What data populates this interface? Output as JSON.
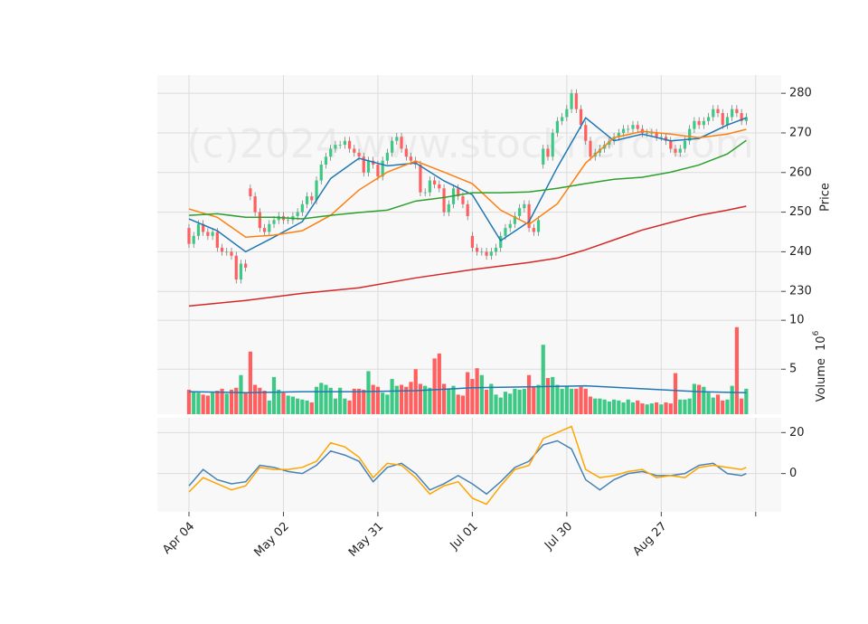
{
  "chart_data": [
    {
      "type": "candlestick",
      "ylabel": "Price",
      "watermark": "(c)2024 www.stocknerd.com",
      "up_color": "#3dc985",
      "down_color": "#ff5f5f",
      "open": [
        246,
        242,
        244,
        247,
        245,
        244,
        245,
        241,
        240,
        240,
        239,
        233,
        237,
        256,
        254,
        250,
        246,
        245,
        247,
        248,
        249,
        248,
        248,
        249,
        250,
        252,
        254,
        253,
        258,
        262,
        264,
        266,
        267,
        267,
        268,
        266,
        265,
        264,
        260,
        263,
        262,
        259,
        263,
        265,
        268,
        269,
        266,
        264,
        263,
        262,
        255,
        255,
        258,
        257,
        256,
        250,
        252,
        256,
        254,
        252,
        244,
        241,
        240,
        240,
        239,
        240,
        241,
        244,
        246,
        247,
        249,
        251,
        252,
        246,
        245,
        262,
        266,
        264,
        270,
        273,
        274,
        276,
        280,
        276,
        272,
        268,
        264,
        265,
        266,
        267,
        268,
        269,
        270,
        271,
        271,
        272,
        271,
        270,
        270,
        270,
        269,
        269,
        268,
        266,
        265,
        266,
        268,
        271,
        273,
        272,
        273,
        274,
        276,
        275,
        272,
        274,
        276,
        275,
        273
      ],
      "high": [
        247,
        245,
        248,
        248,
        246,
        246,
        246,
        242,
        241,
        241,
        240,
        238,
        238,
        257,
        255,
        251,
        247,
        248,
        249,
        250,
        250,
        249,
        250,
        251,
        253,
        255,
        255,
        259,
        263,
        265,
        267,
        268,
        268,
        269,
        269,
        267,
        266,
        265,
        264,
        264,
        263,
        264,
        266,
        269,
        270,
        270,
        267,
        265,
        264,
        263,
        256,
        259,
        259,
        258,
        257,
        253,
        257,
        257,
        255,
        253,
        245,
        242,
        241,
        241,
        241,
        242,
        245,
        247,
        248,
        250,
        252,
        253,
        253,
        247,
        249,
        267,
        267,
        271,
        274,
        275,
        277,
        281,
        281,
        277,
        273,
        269,
        266,
        267,
        268,
        269,
        270,
        271,
        272,
        272,
        273,
        273,
        272,
        271,
        271,
        271,
        270,
        270,
        269,
        267,
        267,
        269,
        272,
        274,
        274,
        274,
        275,
        277,
        277,
        276,
        275,
        277,
        277,
        276,
        275
      ],
      "low": [
        241,
        241,
        243,
        244,
        243,
        243,
        240,
        239,
        239,
        238,
        232,
        232,
        235,
        253,
        249,
        245,
        244,
        244,
        246,
        247,
        247,
        247,
        247,
        248,
        249,
        251,
        252,
        252,
        257,
        261,
        263,
        265,
        266,
        266,
        265,
        264,
        263,
        259,
        259,
        261,
        258,
        258,
        262,
        264,
        267,
        265,
        263,
        262,
        261,
        254,
        254,
        254,
        256,
        255,
        249,
        249,
        251,
        253,
        251,
        248,
        240,
        239,
        239,
        238,
        238,
        239,
        240,
        243,
        245,
        246,
        248,
        250,
        245,
        244,
        244,
        261,
        263,
        263,
        269,
        272,
        273,
        275,
        275,
        271,
        267,
        263,
        263,
        264,
        265,
        266,
        267,
        268,
        269,
        270,
        270,
        270,
        269,
        269,
        269,
        268,
        268,
        267,
        265,
        264,
        264,
        265,
        267,
        270,
        271,
        271,
        272,
        273,
        274,
        271,
        271,
        273,
        274,
        272,
        272
      ],
      "close": [
        242,
        244,
        247,
        245,
        244,
        245,
        241,
        240,
        240,
        239,
        233,
        237,
        236,
        254,
        250,
        246,
        245,
        247,
        248,
        249,
        248,
        248,
        249,
        250,
        252,
        254,
        253,
        258,
        262,
        264,
        266,
        267,
        267,
        268,
        266,
        265,
        264,
        260,
        263,
        262,
        259,
        263,
        265,
        268,
        269,
        266,
        264,
        263,
        262,
        255,
        255,
        258,
        257,
        256,
        250,
        252,
        256,
        254,
        252,
        249,
        241,
        240,
        240,
        239,
        240,
        241,
        244,
        246,
        247,
        249,
        251,
        252,
        246,
        245,
        248,
        266,
        264,
        270,
        273,
        274,
        276,
        280,
        276,
        272,
        268,
        264,
        265,
        266,
        267,
        268,
        269,
        270,
        271,
        271,
        272,
        271,
        270,
        270,
        270,
        269,
        269,
        268,
        266,
        265,
        266,
        268,
        271,
        273,
        272,
        273,
        274,
        276,
        275,
        272,
        274,
        276,
        275,
        273,
        274
      ],
      "series": [
        {
          "color": "#1f77b4",
          "x": [
            0,
            6,
            12,
            18,
            24,
            30,
            36,
            42,
            48,
            54,
            60,
            66,
            72,
            78,
            84,
            90,
            96,
            102,
            108,
            114,
            118
          ],
          "values": [
            248.3,
            245.3,
            240,
            243.7,
            247.6,
            258.5,
            263.6,
            261.7,
            262.4,
            257.9,
            254.4,
            242.8,
            247.6,
            261.3,
            273.8,
            268,
            269.7,
            268,
            268.6,
            272,
            273.8
          ]
        },
        {
          "color": "#ff7f0e",
          "x": [
            0,
            6,
            12,
            18,
            24,
            30,
            36,
            42,
            48,
            54,
            60,
            66,
            72,
            78,
            84,
            90,
            96,
            102,
            108,
            114,
            118
          ],
          "values": [
            250.8,
            248.7,
            243.7,
            244.2,
            245.3,
            249.2,
            255.6,
            260.1,
            262.9,
            260.1,
            257.2,
            250.5,
            246.9,
            252.1,
            262.4,
            268.8,
            270.4,
            269.7,
            268.8,
            269.7,
            270.9
          ]
        },
        {
          "color": "#2ca02c",
          "x": [
            0,
            6,
            12,
            18,
            24,
            30,
            36,
            42,
            48,
            54,
            60,
            66,
            72,
            78,
            84,
            90,
            96,
            102,
            108,
            114,
            118
          ],
          "values": [
            249.2,
            249.6,
            248.7,
            248.7,
            248.3,
            249.2,
            249.9,
            250.5,
            252.8,
            253.7,
            254.9,
            254.9,
            255.1,
            256,
            257.2,
            258.3,
            258.8,
            260.1,
            261.9,
            264.7,
            268.1
          ]
        },
        {
          "color": "#d62728",
          "x": [
            0,
            12,
            24,
            36,
            48,
            60,
            72,
            78,
            84,
            90,
            96,
            102,
            108,
            114,
            118
          ],
          "values": [
            226.3,
            227.7,
            229.5,
            230.9,
            233.4,
            235.5,
            237.3,
            238.4,
            240.5,
            243,
            245.5,
            247.4,
            249.2,
            250.5,
            251.5
          ]
        }
      ],
      "ylim": [
        223.2,
        284.6
      ],
      "yticks": [
        230,
        240,
        250,
        260,
        270,
        280
      ],
      "grid": true
    },
    {
      "type": "bar",
      "ylabel": "Volume",
      "scale_base": "10",
      "scale_exponent": "6",
      "values": [
        2.9,
        2.7,
        2.6,
        2.4,
        2.3,
        2.6,
        2.8,
        3.0,
        2.5,
        2.9,
        3.1,
        4.4,
        2.6,
        6.8,
        3.4,
        3.1,
        2.8,
        1.8,
        4.2,
        2.9,
        2.6,
        2.3,
        2.2,
        2.0,
        1.9,
        1.8,
        1.6,
        3.2,
        3.6,
        3.4,
        3.1,
        2.0,
        3.1,
        2.0,
        1.8,
        3.0,
        3.0,
        2.9,
        4.8,
        3.4,
        3.2,
        2.6,
        2.4,
        4.0,
        3.3,
        3.4,
        3.2,
        3.7,
        5.0,
        3.5,
        3.3,
        3.1,
        6.1,
        6.6,
        3.5,
        3.0,
        3.3,
        2.4,
        2.3,
        4.7,
        4.0,
        5.1,
        4.4,
        2.9,
        3.5,
        2.4,
        2.1,
        2.7,
        2.5,
        3.0,
        2.9,
        3.0,
        4.4,
        3.2,
        3.4,
        7.5,
        4.1,
        4.2,
        3.4,
        3.0,
        3.3,
        3.0,
        3.0,
        3.2,
        3.0,
        2.2,
        2.0,
        2.0,
        1.9,
        1.7,
        1.9,
        1.8,
        1.6,
        1.9,
        1.6,
        1.8,
        1.5,
        1.4,
        1.5,
        1.6,
        1.4,
        1.6,
        1.5,
        4.6,
        1.9,
        1.9,
        2.0,
        3.5,
        3.4,
        3.2,
        2.6,
        2.1,
        2.4,
        1.8,
        1.9,
        3.3,
        9.3,
        2.0,
        3.0
      ],
      "series": [
        {
          "color": "#1f77b4",
          "x": [
            0,
            12,
            24,
            36,
            48,
            60,
            72,
            84,
            96,
            108,
            118
          ],
          "values": [
            2.7,
            2.6,
            2.7,
            2.7,
            2.8,
            3.1,
            3.2,
            3.3,
            3.0,
            2.7,
            2.6
          ]
        }
      ],
      "ylim": [
        0.4,
        10.2
      ],
      "yticks": [
        5,
        10
      ],
      "grid": true
    },
    {
      "type": "line",
      "series": [
        {
          "color": "#4682b4",
          "x": [
            0,
            3,
            6,
            9,
            12,
            15,
            18,
            21,
            24,
            27,
            30,
            33,
            36,
            39,
            42,
            45,
            48,
            51,
            54,
            57,
            60,
            63,
            66,
            69,
            72,
            75,
            78,
            81,
            84,
            87,
            90,
            93,
            96,
            99,
            102,
            105,
            108,
            111,
            114,
            117,
            118
          ],
          "values": [
            -6,
            2,
            -3,
            -5,
            -4,
            4,
            3,
            1,
            0,
            4,
            11,
            9,
            6,
            -4,
            3,
            5,
            0,
            -8,
            -5,
            -1,
            -5,
            -10,
            -4,
            3,
            6,
            14,
            16,
            12,
            -3,
            -8,
            -3,
            0,
            1,
            -1,
            -1,
            0,
            4,
            5,
            0,
            -1,
            0
          ]
        },
        {
          "color": "#ffa500",
          "x": [
            0,
            3,
            6,
            9,
            12,
            15,
            18,
            21,
            24,
            27,
            30,
            33,
            36,
            39,
            42,
            45,
            48,
            51,
            54,
            57,
            60,
            63,
            66,
            69,
            72,
            75,
            78,
            81,
            84,
            87,
            90,
            93,
            96,
            99,
            102,
            105,
            108,
            111,
            114,
            117,
            118
          ],
          "values": [
            -9,
            -2,
            -5,
            -8,
            -6,
            3,
            2,
            2,
            3,
            6,
            15,
            13,
            8,
            -2,
            5,
            4,
            -2,
            -10,
            -6,
            -4,
            -12,
            -15,
            -6,
            2,
            4,
            17,
            20,
            23,
            2,
            -2,
            -1,
            1,
            2,
            -2,
            -1,
            -2,
            3,
            4,
            3,
            2,
            3
          ]
        }
      ],
      "ylim": [
        -18.7,
        27.2
      ],
      "yticks": [
        0,
        20
      ],
      "grid": true,
      "xlim": [
        -6.7,
        125.4
      ],
      "xticks": [
        {
          "value": 0,
          "label": "Apr 04"
        },
        {
          "value": 20,
          "label": "May 02"
        },
        {
          "value": 40,
          "label": "May 31"
        },
        {
          "value": 60,
          "label": "Jul 01"
        },
        {
          "value": 80,
          "label": "Jul 30"
        },
        {
          "value": 100,
          "label": "Aug 27"
        },
        {
          "value": 120,
          "label": null
        }
      ]
    }
  ]
}
